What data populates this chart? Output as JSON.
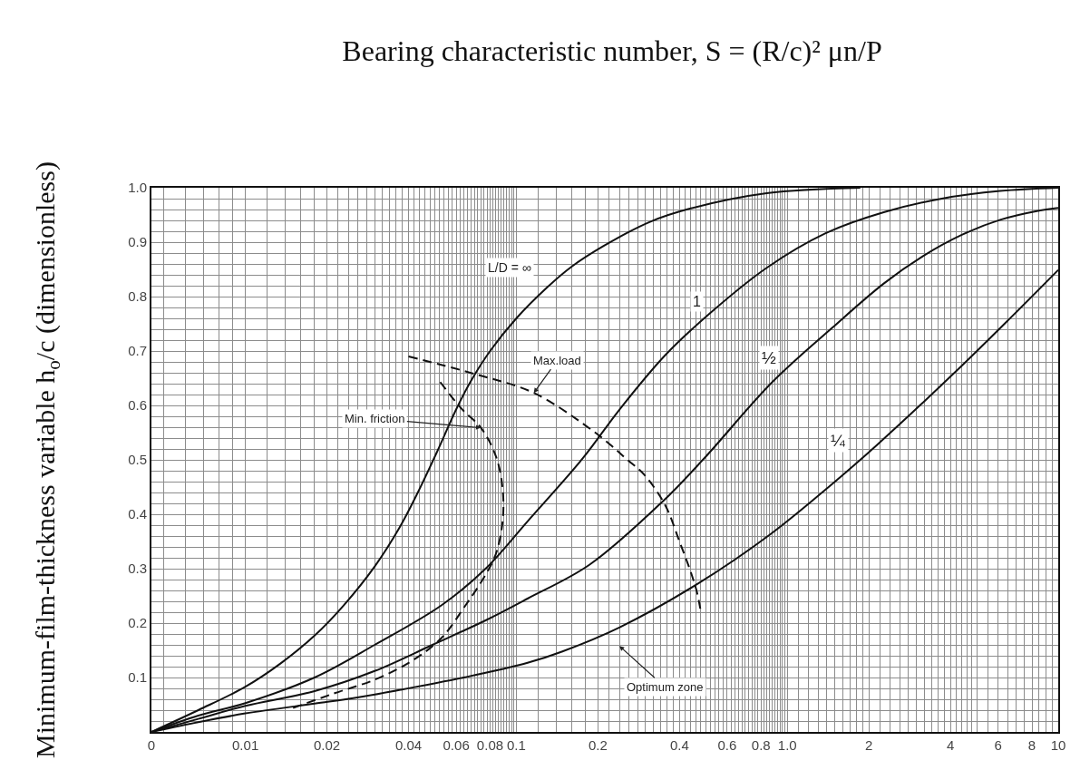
{
  "chart_data": {
    "type": "line",
    "title": "Bearing characteristic number, S = (R/c)² μn/P",
    "ylabel": "Minimum-film-thickness variable h$_{o}$/c (dimensionless)",
    "log": "x",
    "xlim": [
      0.0045,
      10
    ],
    "ylim": [
      0,
      1
    ],
    "grid": true,
    "line_style": "solid",
    "xticks": [
      {
        "value": 0.0045,
        "label": "0"
      },
      {
        "value": 0.005,
        "label": null
      },
      {
        "value": 0.006,
        "label": null
      },
      {
        "value": 0.007,
        "label": null
      },
      {
        "value": 0.008,
        "label": null
      },
      {
        "value": 0.009,
        "label": null
      },
      0.01,
      {
        "value": 0.012,
        "label": null
      },
      {
        "value": 0.014,
        "label": null
      },
      {
        "value": 0.016,
        "label": null
      },
      {
        "value": 0.018,
        "label": null
      },
      0.02,
      {
        "value": 0.022,
        "label": null
      },
      {
        "value": 0.024,
        "label": null
      },
      {
        "value": 0.026,
        "label": null
      },
      {
        "value": 0.028,
        "label": null
      },
      {
        "value": 0.03,
        "label": null
      },
      {
        "value": 0.032,
        "label": null
      },
      {
        "value": 0.034,
        "label": null
      },
      {
        "value": 0.036,
        "label": null
      },
      {
        "value": 0.038,
        "label": null
      },
      0.04,
      {
        "value": 0.042,
        "label": null
      },
      {
        "value": 0.044,
        "label": null
      },
      {
        "value": 0.046,
        "label": null
      },
      {
        "value": 0.048,
        "label": null
      },
      {
        "value": 0.05,
        "label": null
      },
      {
        "value": 0.052,
        "label": null
      },
      {
        "value": 0.054,
        "label": null
      },
      {
        "value": 0.056,
        "label": null
      },
      {
        "value": 0.058,
        "label": null
      },
      0.06,
      {
        "value": 0.062,
        "label": null
      },
      {
        "value": 0.064,
        "label": null
      },
      {
        "value": 0.066,
        "label": null
      },
      {
        "value": 0.068,
        "label": null
      },
      {
        "value": 0.07,
        "label": null
      },
      {
        "value": 0.072,
        "label": null
      },
      {
        "value": 0.074,
        "label": null
      },
      {
        "value": 0.076,
        "label": null
      },
      {
        "value": 0.078,
        "label": null
      },
      0.08,
      {
        "value": 0.082,
        "label": null
      },
      {
        "value": 0.084,
        "label": null
      },
      {
        "value": 0.086,
        "label": null
      },
      {
        "value": 0.088,
        "label": null
      },
      {
        "value": 0.09,
        "label": null
      },
      {
        "value": 0.092,
        "label": null
      },
      {
        "value": 0.094,
        "label": null
      },
      {
        "value": 0.096,
        "label": null
      },
      {
        "value": 0.098,
        "label": null
      },
      0.1,
      {
        "value": 0.12,
        "label": null
      },
      {
        "value": 0.14,
        "label": null
      },
      {
        "value": 0.16,
        "label": null
      },
      {
        "value": 0.18,
        "label": null
      },
      0.2,
      {
        "value": 0.22,
        "label": null
      },
      {
        "value": 0.24,
        "label": null
      },
      {
        "value": 0.26,
        "label": null
      },
      {
        "value": 0.28,
        "label": null
      },
      {
        "value": 0.3,
        "label": null
      },
      {
        "value": 0.32,
        "label": null
      },
      {
        "value": 0.34,
        "label": null
      },
      {
        "value": 0.36,
        "label": null
      },
      {
        "value": 0.38,
        "label": null
      },
      0.4,
      {
        "value": 0.42,
        "label": null
      },
      {
        "value": 0.44,
        "label": null
      },
      {
        "value": 0.46,
        "label": null
      },
      {
        "value": 0.48,
        "label": null
      },
      {
        "value": 0.5,
        "label": null
      },
      {
        "value": 0.52,
        "label": null
      },
      {
        "value": 0.54,
        "label": null
      },
      {
        "value": 0.56,
        "label": null
      },
      {
        "value": 0.58,
        "label": null
      },
      0.6,
      {
        "value": 0.62,
        "label": null
      },
      {
        "value": 0.64,
        "label": null
      },
      {
        "value": 0.66,
        "label": null
      },
      {
        "value": 0.68,
        "label": null
      },
      {
        "value": 0.7,
        "label": null
      },
      {
        "value": 0.72,
        "label": null
      },
      {
        "value": 0.74,
        "label": null
      },
      {
        "value": 0.76,
        "label": null
      },
      {
        "value": 0.78,
        "label": null
      },
      0.8,
      {
        "value": 0.82,
        "label": null
      },
      {
        "value": 0.84,
        "label": null
      },
      {
        "value": 0.86,
        "label": null
      },
      {
        "value": 0.88,
        "label": null
      },
      {
        "value": 0.9,
        "label": null
      },
      {
        "value": 0.92,
        "label": null
      },
      {
        "value": 0.94,
        "label": null
      },
      {
        "value": 0.96,
        "label": null
      },
      {
        "value": 0.98,
        "label": null
      },
      {
        "value": 1,
        "label": "1.0"
      },
      {
        "value": 1.1,
        "label": null
      },
      {
        "value": 1.2,
        "label": null
      },
      {
        "value": 1.3,
        "label": null
      },
      {
        "value": 1.4,
        "label": null
      },
      {
        "value": 1.5,
        "label": null
      },
      {
        "value": 1.6,
        "label": null
      },
      {
        "value": 1.7,
        "label": null
      },
      {
        "value": 1.8,
        "label": null
      },
      {
        "value": 1.9,
        "label": null
      },
      2,
      {
        "value": 2.2,
        "label": null
      },
      {
        "value": 2.4,
        "label": null
      },
      {
        "value": 2.6,
        "label": null
      },
      {
        "value": 2.8,
        "label": null
      },
      {
        "value": 3,
        "label": null
      },
      {
        "value": 3.2,
        "label": null
      },
      {
        "value": 3.4,
        "label": null
      },
      {
        "value": 3.6,
        "label": null
      },
      {
        "value": 3.8,
        "label": null
      },
      4,
      {
        "value": 4.2,
        "label": null
      },
      {
        "value": 4.4,
        "label": null
      },
      {
        "value": 4.6,
        "label": null
      },
      {
        "value": 4.8,
        "label": null
      },
      {
        "value": 5,
        "label": null
      },
      {
        "value": 5.5,
        "label": null
      },
      6,
      {
        "value": 6.5,
        "label": null
      },
      {
        "value": 7,
        "label": null
      },
      {
        "value": 7.5,
        "label": null
      },
      8,
      {
        "value": 8.5,
        "label": null
      },
      {
        "value": 9,
        "label": null
      },
      {
        "value": 9.5,
        "label": null
      },
      10
    ],
    "yticks": [
      {
        "value": 0.02,
        "label": null
      },
      {
        "value": 0.04,
        "label": null
      },
      {
        "value": 0.06,
        "label": null
      },
      {
        "value": 0.08,
        "label": null
      },
      0.1,
      {
        "value": 0.12,
        "label": null
      },
      {
        "value": 0.14,
        "label": null
      },
      {
        "value": 0.16,
        "label": null
      },
      {
        "value": 0.18,
        "label": null
      },
      0.2,
      {
        "value": 0.22,
        "label": null
      },
      {
        "value": 0.24,
        "label": null
      },
      {
        "value": 0.26,
        "label": null
      },
      {
        "value": 0.28,
        "label": null
      },
      0.3,
      {
        "value": 0.32,
        "label": null
      },
      {
        "value": 0.34,
        "label": null
      },
      {
        "value": 0.36,
        "label": null
      },
      {
        "value": 0.38,
        "label": null
      },
      0.4,
      {
        "value": 0.42,
        "label": null
      },
      {
        "value": 0.44,
        "label": null
      },
      {
        "value": 0.46,
        "label": null
      },
      {
        "value": 0.48,
        "label": null
      },
      0.5,
      {
        "value": 0.52,
        "label": null
      },
      {
        "value": 0.54,
        "label": null
      },
      {
        "value": 0.56,
        "label": null
      },
      {
        "value": 0.58,
        "label": null
      },
      0.6,
      {
        "value": 0.62,
        "label": null
      },
      {
        "value": 0.64,
        "label": null
      },
      {
        "value": 0.66,
        "label": null
      },
      {
        "value": 0.68,
        "label": null
      },
      0.7,
      {
        "value": 0.72,
        "label": null
      },
      {
        "value": 0.74,
        "label": null
      },
      {
        "value": 0.76,
        "label": null
      },
      {
        "value": 0.78,
        "label": null
      },
      0.8,
      {
        "value": 0.82,
        "label": null
      },
      {
        "value": 0.84,
        "label": null
      },
      {
        "value": 0.86,
        "label": null
      },
      {
        "value": 0.88,
        "label": null
      },
      0.9,
      {
        "value": 0.92,
        "label": null
      },
      {
        "value": 0.94,
        "label": null
      },
      {
        "value": 0.96,
        "label": null
      },
      {
        "value": 0.98,
        "label": null
      },
      {
        "value": 1,
        "label": "1.0"
      }
    ],
    "series": [
      {
        "name": "L/D = ∞",
        "color": "#111111",
        "x": [
          0.0045,
          0.0067,
          0.01,
          0.0135,
          0.018,
          0.023,
          0.03,
          0.037,
          0.043,
          0.051,
          0.06,
          0.068,
          0.08,
          0.1,
          0.13,
          0.16,
          0.21,
          0.31,
          0.44,
          0.84,
          1.86
        ],
        "values": [
          0,
          0.04,
          0.083,
          0.126,
          0.177,
          0.232,
          0.304,
          0.375,
          0.437,
          0.515,
          0.593,
          0.645,
          0.7,
          0.76,
          0.817,
          0.855,
          0.893,
          0.937,
          0.962,
          0.99,
          1
        ]
      },
      {
        "name": "1",
        "color": "#111111",
        "x": [
          0.0045,
          0.0067,
          0.01,
          0.018,
          0.03,
          0.053,
          0.077,
          0.11,
          0.176,
          0.24,
          0.354,
          0.52,
          0.84,
          1.38,
          2.27,
          3.72,
          6.1,
          10
        ],
        "values": [
          0,
          0.03,
          0.053,
          0.1,
          0.16,
          0.233,
          0.3,
          0.387,
          0.503,
          0.592,
          0.692,
          0.77,
          0.853,
          0.916,
          0.955,
          0.98,
          0.994,
          1
        ]
      },
      {
        "name": "½",
        "color": "#111111",
        "x": [
          0.0045,
          0.0067,
          0.01,
          0.018,
          0.03,
          0.049,
          0.077,
          0.11,
          0.186,
          0.346,
          0.494,
          0.877,
          1.46,
          2.27,
          3.16,
          4.39,
          6.1,
          8.5,
          10
        ],
        "values": [
          0,
          0.024,
          0.048,
          0.075,
          0.112,
          0.16,
          0.205,
          0.245,
          0.307,
          0.423,
          0.503,
          0.642,
          0.742,
          0.824,
          0.874,
          0.913,
          0.941,
          0.958,
          0.963
        ]
      },
      {
        "name": "¼",
        "color": "#111111",
        "x": [
          0.0045,
          0.0067,
          0.01,
          0.018,
          0.025,
          0.037,
          0.064,
          0.11,
          0.148,
          0.24,
          0.47,
          0.86,
          1.46,
          2.15,
          4.24,
          6.76,
          10
        ],
        "values": [
          0,
          0.018,
          0.034,
          0.052,
          0.062,
          0.077,
          0.1,
          0.127,
          0.148,
          0.192,
          0.273,
          0.362,
          0.455,
          0.528,
          0.665,
          0.764,
          0.849
        ]
      },
      {
        "name": "Min. friction",
        "color": "#111111",
        "line_style": "dashed",
        "x": [
          0.015,
          0.021,
          0.03,
          0.041,
          0.053,
          0.065,
          0.076,
          0.084,
          0.089,
          0.089,
          0.084,
          0.074,
          0.063,
          0.052
        ],
        "values": [
          0.044,
          0.07,
          0.096,
          0.13,
          0.173,
          0.233,
          0.284,
          0.327,
          0.387,
          0.447,
          0.507,
          0.559,
          0.593,
          0.645
        ]
      },
      {
        "name": "Max.load",
        "color": "#111111",
        "line_style": "dashed",
        "x": [
          0.04,
          0.07,
          0.116,
          0.186,
          0.222,
          0.253,
          0.296,
          0.354,
          0.4,
          0.443,
          0.465,
          0.48
        ],
        "values": [
          0.69,
          0.658,
          0.623,
          0.558,
          0.528,
          0.503,
          0.473,
          0.417,
          0.35,
          0.29,
          0.255,
          0.22
        ]
      }
    ],
    "annotations": [
      "Optimum zone"
    ]
  }
}
